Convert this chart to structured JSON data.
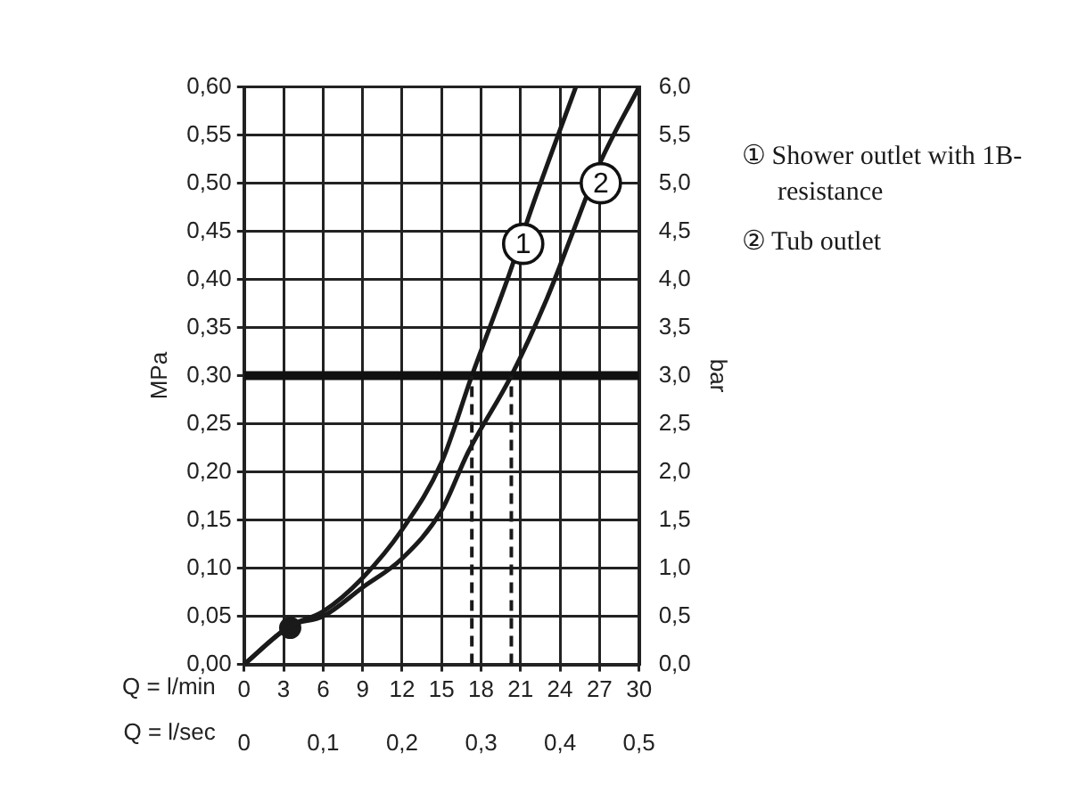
{
  "chart_data": {
    "type": "line",
    "xlabel": "Q = l/min",
    "x2label": "Q = l/sec",
    "ylabel": "MPa",
    "y2label": "bar",
    "xlim": [
      0,
      30
    ],
    "xticks": [
      0,
      3,
      6,
      9,
      12,
      15,
      18,
      21,
      24,
      27,
      30
    ],
    "x2lim": [
      0,
      0.5
    ],
    "x2ticks": [
      0,
      {
        "value": 0.1,
        "label": "0,1"
      },
      {
        "value": 0.2,
        "label": "0,2"
      },
      {
        "value": 0.3,
        "label": "0,3"
      },
      {
        "value": 0.4,
        "label": "0,4"
      },
      {
        "value": 0.5,
        "label": "0,5"
      }
    ],
    "ylim": [
      0,
      0.6
    ],
    "yticks": [
      {
        "value": 0,
        "label": "0,00"
      },
      {
        "value": 0.05,
        "label": "0,05"
      },
      {
        "value": 0.1,
        "label": "0,10"
      },
      {
        "value": 0.15,
        "label": "0,15"
      },
      {
        "value": 0.2,
        "label": "0,20"
      },
      {
        "value": 0.25,
        "label": "0,25"
      },
      {
        "value": 0.3,
        "label": "0,30"
      },
      {
        "value": 0.35,
        "label": "0,35"
      },
      {
        "value": 0.4,
        "label": "0,40"
      },
      {
        "value": 0.45,
        "label": "0,45"
      },
      {
        "value": 0.5,
        "label": "0,50"
      },
      {
        "value": 0.55,
        "label": "0,55"
      },
      {
        "value": 0.6,
        "label": "0,60"
      }
    ],
    "y2lim": [
      0,
      6
    ],
    "y2ticks": [
      {
        "value": 0,
        "label": "0,0"
      },
      {
        "value": 0.5,
        "label": "0,5"
      },
      {
        "value": 1,
        "label": "1,0"
      },
      {
        "value": 1.5,
        "label": "1,5"
      },
      {
        "value": 2,
        "label": "2,0"
      },
      {
        "value": 2.5,
        "label": "2,5"
      },
      {
        "value": 3,
        "label": "3,0"
      },
      {
        "value": 3.5,
        "label": "3,5"
      },
      {
        "value": 4,
        "label": "4,0"
      },
      {
        "value": 4.5,
        "label": "4,5"
      },
      {
        "value": 5,
        "label": "5,0"
      },
      {
        "value": 5.5,
        "label": "5,5"
      },
      {
        "value": 6,
        "label": "6,0"
      }
    ],
    "grid": true,
    "legend": "right",
    "marker": "none",
    "line_style": "solid",
    "series": [
      {
        "name": "① Shower outlet with 1B-resistance",
        "color": "#1a1a1a",
        "x": [
          0,
          3.5,
          6,
          9,
          12,
          15,
          17.3,
          20,
          22,
          25.2
        ],
        "values": [
          0,
          0.04,
          0.055,
          0.09,
          0.14,
          0.21,
          0.3,
          0.4,
          0.48,
          0.6
        ]
      },
      {
        "name": "② Tub outlet",
        "color": "#1a1a1a",
        "x": [
          0,
          3.5,
          6,
          9,
          12,
          15,
          17,
          20.3,
          23,
          25,
          27,
          30
        ],
        "values": [
          0,
          0.04,
          0.05,
          0.08,
          0.11,
          0.16,
          0.22,
          0.3,
          0.38,
          0.45,
          0.52,
          0.6
        ]
      },
      {
        "type": "scatter",
        "marker": "circle",
        "color": "#1a1a1a",
        "x": [
          3.5
        ],
        "values": [
          0.038
        ]
      }
    ],
    "ref_lines": [
      {
        "axis": "y",
        "value": 0.3,
        "color": "#111111",
        "line_style": "solid"
      },
      {
        "axis": "x",
        "value": 17.3,
        "color": "#1a1a1a",
        "line_style": "dashed"
      },
      {
        "axis": "x",
        "value": 20.3,
        "color": "#1a1a1a",
        "line_style": "dashed"
      }
    ],
    "annotations": [
      {
        "text": "1",
        "x": 21.2,
        "y": 0.437
      },
      {
        "text": "2",
        "x": 27.1,
        "y": 0.5
      }
    ]
  }
}
